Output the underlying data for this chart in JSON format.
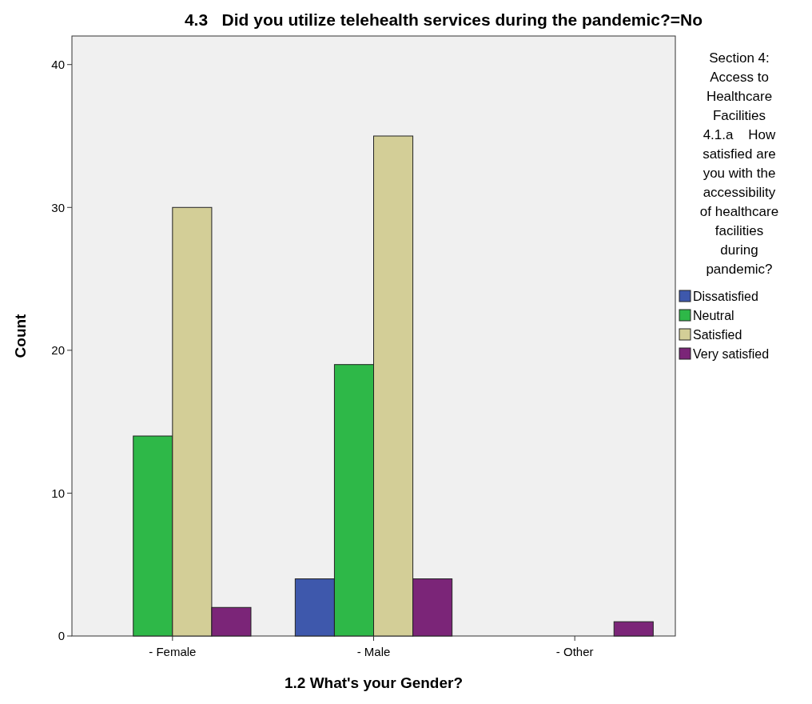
{
  "chart_data": {
    "type": "bar",
    "title": "4.3   Did you utilize telehealth services during the pandemic?=No",
    "xlabel": "1.2 What's your Gender?",
    "ylabel": "Count",
    "legend_title": "Section 4: Access to Healthcare Facilities 4.1.a    How satisfied are you with the accessibility of healthcare facilities during pandemic?",
    "categories": [
      "- Female",
      "- Male",
      "- Other"
    ],
    "series": [
      {
        "name": "Dissatisfied",
        "color": "#3e58ac",
        "values": [
          null,
          4,
          null
        ]
      },
      {
        "name": "Neutral",
        "color": "#2eb848",
        "values": [
          14,
          19,
          null
        ]
      },
      {
        "name": "Satisfied",
        "color": "#d3ce97",
        "values": [
          30,
          35,
          null
        ]
      },
      {
        "name": "Very satisfied",
        "color": "#7b2578",
        "values": [
          2,
          4,
          1
        ]
      }
    ],
    "ylim": [
      0,
      42
    ],
    "yticks": [
      0,
      10,
      20,
      30,
      40
    ],
    "grid": false,
    "legend": "right"
  }
}
